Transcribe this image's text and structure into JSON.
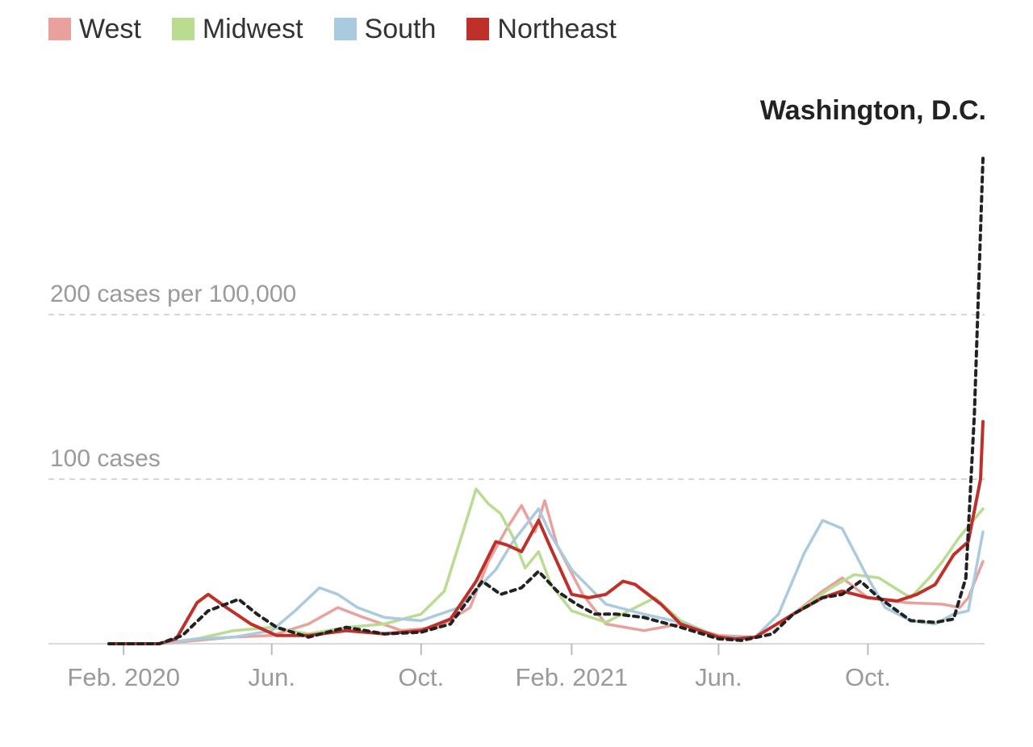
{
  "legend": [
    {
      "label": "West",
      "color": "#e8a19c"
    },
    {
      "label": "Midwest",
      "color": "#b9dc90"
    },
    {
      "label": "South",
      "color": "#aacbdf"
    },
    {
      "label": "Northeast",
      "color": "#c0302a"
    }
  ],
  "chart_data": {
    "type": "line",
    "title": "",
    "xlabel": "",
    "ylabel": "cases per 100,000",
    "grid": true,
    "legend_position": "top-left",
    "x_start": "2020-01-20",
    "x_end": "2022-01-03",
    "ylim": [
      0,
      200
    ],
    "y_gridlines": [
      {
        "value": 200,
        "label": "200 cases per 100,000"
      },
      {
        "value": 100,
        "label": "100 cases"
      }
    ],
    "x_ticks": [
      {
        "date": "2020-02-01",
        "label": "Feb. 2020"
      },
      {
        "date": "2020-06-01",
        "label": "Jun."
      },
      {
        "date": "2020-10-01",
        "label": "Oct."
      },
      {
        "date": "2021-02-01",
        "label": "Feb. 2021"
      },
      {
        "date": "2021-06-01",
        "label": "Jun."
      },
      {
        "date": "2021-10-01",
        "label": "Oct."
      }
    ],
    "annotation": {
      "text": "Washington, D.C.",
      "color": "#222222"
    },
    "series": [
      {
        "name": "West",
        "color": "#e8a19c",
        "x": [
          "2020-01-20",
          "2020-03-01",
          "2020-04-01",
          "2020-05-01",
          "2020-06-01",
          "2020-07-01",
          "2020-07-25",
          "2020-08-15",
          "2020-09-15",
          "2020-10-15",
          "2020-11-10",
          "2020-11-25",
          "2020-12-10",
          "2020-12-22",
          "2021-01-02",
          "2021-01-10",
          "2021-01-20",
          "2021-02-10",
          "2021-03-01",
          "2021-04-01",
          "2021-05-01",
          "2021-06-01",
          "2021-07-01",
          "2021-08-01",
          "2021-08-25",
          "2021-09-10",
          "2021-10-01",
          "2021-11-01",
          "2021-12-01",
          "2021-12-15",
          "2021-12-22",
          "2022-01-03"
        ],
        "y": [
          0,
          0,
          2,
          4,
          5,
          12,
          22,
          16,
          8,
          10,
          22,
          50,
          70,
          84,
          68,
          87,
          60,
          30,
          12,
          8,
          12,
          5,
          4,
          18,
          32,
          40,
          28,
          25,
          24,
          22,
          28,
          50
        ]
      },
      {
        "name": "Midwest",
        "color": "#b9dc90",
        "x": [
          "2020-01-20",
          "2020-03-01",
          "2020-04-01",
          "2020-05-01",
          "2020-06-01",
          "2020-07-01",
          "2020-08-01",
          "2020-09-01",
          "2020-10-01",
          "2020-10-20",
          "2020-11-05",
          "2020-11-15",
          "2020-11-25",
          "2020-12-05",
          "2020-12-15",
          "2020-12-25",
          "2021-01-05",
          "2021-01-15",
          "2021-02-01",
          "2021-03-01",
          "2021-04-10",
          "2021-05-01",
          "2021-06-01",
          "2021-07-01",
          "2021-08-01",
          "2021-09-01",
          "2021-09-20",
          "2021-10-10",
          "2021-10-25",
          "2021-11-05",
          "2021-11-20",
          "2021-12-01",
          "2021-12-15",
          "2022-01-03"
        ],
        "y": [
          0,
          0,
          3,
          8,
          10,
          6,
          10,
          12,
          18,
          32,
          70,
          94,
          85,
          79,
          65,
          46,
          56,
          36,
          20,
          13,
          28,
          14,
          4,
          4,
          18,
          34,
          42,
          40,
          33,
          28,
          40,
          50,
          65,
          82
        ]
      },
      {
        "name": "South",
        "color": "#aacbdf",
        "x": [
          "2020-01-20",
          "2020-03-01",
          "2020-04-01",
          "2020-05-01",
          "2020-06-01",
          "2020-06-20",
          "2020-07-10",
          "2020-07-25",
          "2020-08-10",
          "2020-09-01",
          "2020-10-01",
          "2020-11-01",
          "2020-12-01",
          "2020-12-15",
          "2021-01-05",
          "2021-01-15",
          "2021-02-01",
          "2021-03-01",
          "2021-04-01",
          "2021-05-01",
          "2021-06-01",
          "2021-07-01",
          "2021-07-20",
          "2021-08-10",
          "2021-08-25",
          "2021-09-10",
          "2021-10-01",
          "2021-10-15",
          "2021-11-05",
          "2021-11-25",
          "2021-12-10",
          "2021-12-22",
          "2022-01-03"
        ],
        "y": [
          0,
          0,
          3,
          4,
          8,
          20,
          34,
          30,
          22,
          16,
          14,
          22,
          45,
          62,
          82,
          66,
          45,
          24,
          18,
          13,
          4,
          4,
          18,
          55,
          75,
          70,
          40,
          22,
          14,
          12,
          18,
          20,
          68
        ]
      },
      {
        "name": "Northeast",
        "color": "#c0302a",
        "x": [
          "2020-01-20",
          "2020-03-01",
          "2020-03-15",
          "2020-04-01",
          "2020-04-10",
          "2020-04-25",
          "2020-05-15",
          "2020-06-05",
          "2020-07-01",
          "2020-08-01",
          "2020-09-01",
          "2020-10-01",
          "2020-10-25",
          "2020-11-15",
          "2020-12-01",
          "2020-12-10",
          "2020-12-22",
          "2021-01-05",
          "2021-01-15",
          "2021-02-01",
          "2021-02-15",
          "2021-03-01",
          "2021-03-15",
          "2021-03-25",
          "2021-04-15",
          "2021-05-01",
          "2021-06-01",
          "2021-06-15",
          "2021-07-01",
          "2021-08-01",
          "2021-08-25",
          "2021-09-10",
          "2021-10-01",
          "2021-10-25",
          "2021-11-10",
          "2021-11-25",
          "2021-12-10",
          "2021-12-22",
          "2022-01-01",
          "2022-01-03"
        ],
        "y": [
          0,
          0,
          3,
          25,
          30,
          22,
          12,
          5,
          5,
          8,
          6,
          8,
          15,
          38,
          62,
          60,
          56,
          75,
          58,
          30,
          28,
          30,
          38,
          36,
          24,
          12,
          4,
          3,
          4,
          18,
          28,
          32,
          28,
          26,
          30,
          36,
          54,
          62,
          100,
          135
        ]
      },
      {
        "name": "Washington, D.C.",
        "color": "#222222",
        "dashed": true,
        "x": [
          "2020-01-20",
          "2020-03-01",
          "2020-03-20",
          "2020-04-10",
          "2020-05-05",
          "2020-05-20",
          "2020-06-05",
          "2020-07-01",
          "2020-08-01",
          "2020-09-01",
          "2020-10-01",
          "2020-10-25",
          "2020-11-20",
          "2020-12-05",
          "2020-12-22",
          "2021-01-05",
          "2021-01-20",
          "2021-02-05",
          "2021-02-20",
          "2021-03-10",
          "2021-04-01",
          "2021-05-01",
          "2021-06-01",
          "2021-06-20",
          "2021-07-15",
          "2021-08-01",
          "2021-08-25",
          "2021-09-10",
          "2021-09-25",
          "2021-10-10",
          "2021-11-05",
          "2021-11-25",
          "2021-12-10",
          "2021-12-20",
          "2021-12-27",
          "2022-01-03"
        ],
        "y": [
          0,
          0,
          5,
          20,
          27,
          18,
          10,
          4,
          10,
          6,
          7,
          12,
          38,
          30,
          34,
          44,
          32,
          24,
          18,
          18,
          16,
          10,
          3,
          2,
          6,
          18,
          28,
          30,
          38,
          28,
          14,
          13,
          15,
          40,
          140,
          295
        ]
      }
    ]
  }
}
